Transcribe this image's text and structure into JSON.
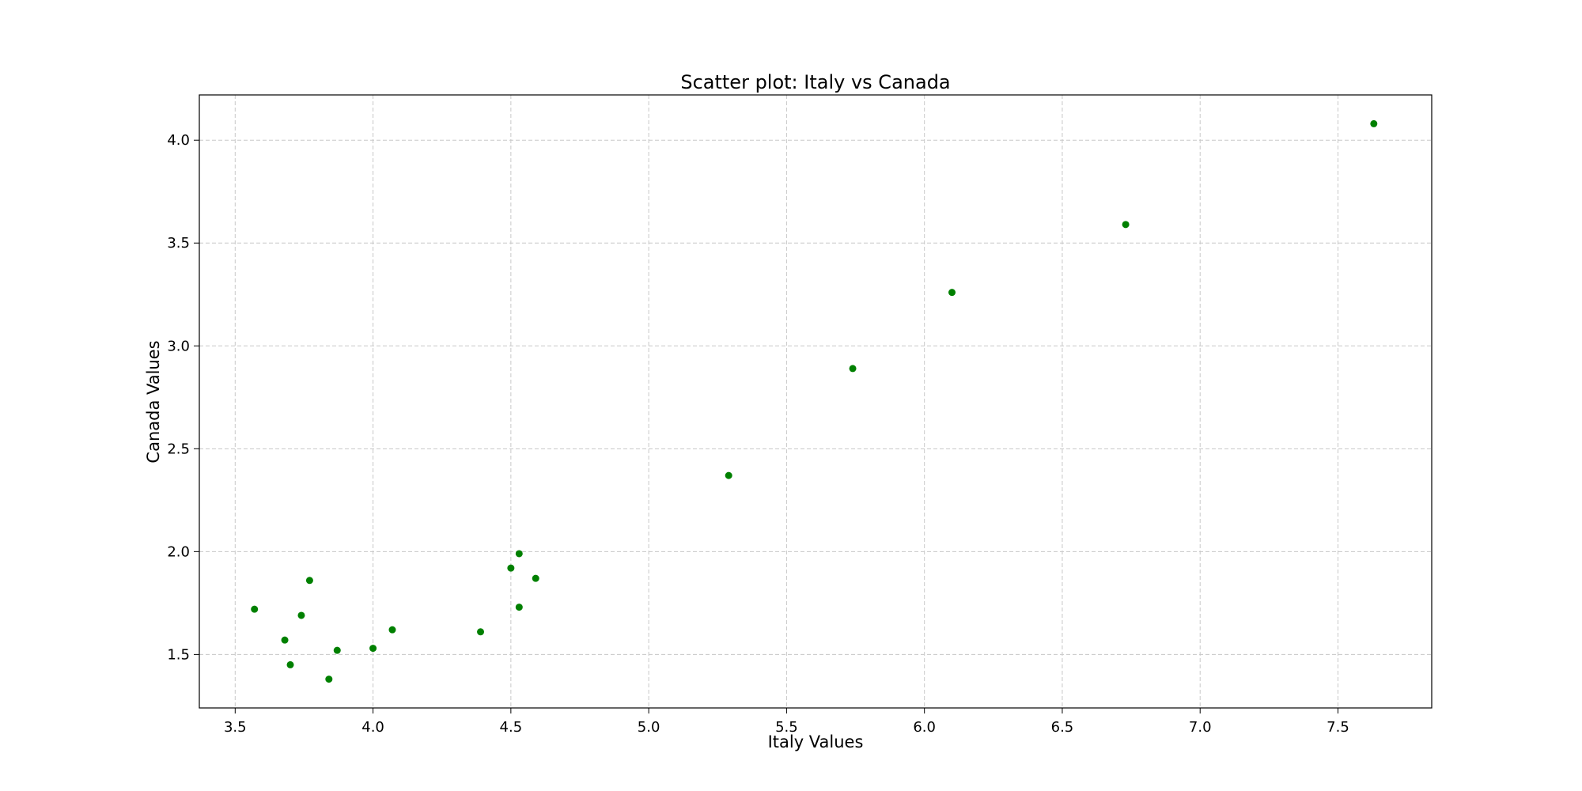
{
  "chart_data": {
    "type": "scatter",
    "title": "Scatter plot: Italy vs Canada",
    "xlabel": "Italy Values",
    "ylabel": "Canada Values",
    "xlim": [
      3.37,
      7.84
    ],
    "ylim": [
      1.24,
      4.22
    ],
    "xticks": [
      3.5,
      4.0,
      4.5,
      5.0,
      5.5,
      6.0,
      6.5,
      7.0,
      7.5
    ],
    "xtick_labels": [
      "3.5",
      "4.0",
      "4.5",
      "5.0",
      "5.5",
      "6.0",
      "6.5",
      "7.0",
      "7.5"
    ],
    "yticks": [
      1.5,
      2.0,
      2.5,
      3.0,
      3.5,
      4.0
    ],
    "ytick_labels": [
      "1.5",
      "2.0",
      "2.5",
      "3.0",
      "3.5",
      "4.0"
    ],
    "grid": true,
    "marker_color": "#008000",
    "points": [
      {
        "x": 3.57,
        "y": 1.72
      },
      {
        "x": 3.68,
        "y": 1.57
      },
      {
        "x": 3.7,
        "y": 1.45
      },
      {
        "x": 3.74,
        "y": 1.69
      },
      {
        "x": 3.77,
        "y": 1.86
      },
      {
        "x": 3.84,
        "y": 1.38
      },
      {
        "x": 3.87,
        "y": 1.52
      },
      {
        "x": 4.0,
        "y": 1.53
      },
      {
        "x": 4.07,
        "y": 1.62
      },
      {
        "x": 4.39,
        "y": 1.61
      },
      {
        "x": 4.5,
        "y": 1.92
      },
      {
        "x": 4.53,
        "y": 1.99
      },
      {
        "x": 4.53,
        "y": 1.73
      },
      {
        "x": 4.59,
        "y": 1.87
      },
      {
        "x": 5.29,
        "y": 2.37
      },
      {
        "x": 5.74,
        "y": 2.89
      },
      {
        "x": 6.1,
        "y": 3.26
      },
      {
        "x": 6.73,
        "y": 3.59
      },
      {
        "x": 7.63,
        "y": 4.08
      }
    ]
  }
}
